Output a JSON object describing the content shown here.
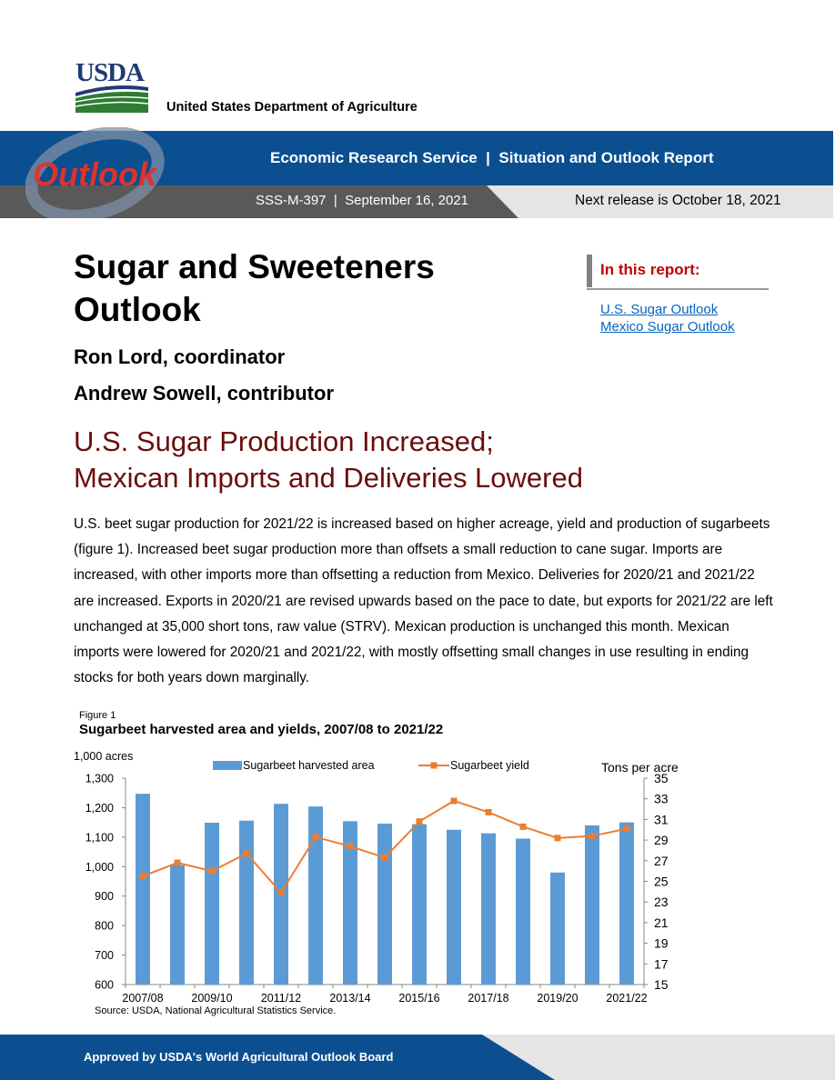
{
  "header": {
    "agency_short": "USDA",
    "agency_full": "United States Department of Agriculture",
    "series_logo": "Outlook",
    "banner_title": "Economic Research Service  |  Situation and Outlook Report",
    "report_id": "SSS-M-397  |  September 16, 2021",
    "next_release": "Next release is October 18, 2021"
  },
  "colors": {
    "banner_blue": "#0b4f91",
    "banner_dark": "#595959",
    "headline": "#6b0d0d",
    "accent_red": "#c00000",
    "bar": "#5b9bd5",
    "line": "#ed7d31"
  },
  "title": {
    "line1": "Sugar and Sweeteners",
    "line2": "Outlook"
  },
  "authors": [
    "Ron Lord, coordinator",
    "Andrew Sowell, contributor"
  ],
  "sidebar": {
    "title": "In this report:",
    "links": [
      "U.S. Sugar Outlook",
      "Mexico Sugar Outlook"
    ]
  },
  "headline": {
    "line1": "U.S. Sugar Production Increased;",
    "line2": "Mexican Imports and Deliveries Lowered"
  },
  "body": "U.S. beet sugar production for 2021/22 is increased based on higher acreage, yield and production of sugarbeets (figure 1). Increased beet sugar production more than offsets a small reduction to cane sugar. Imports are increased, with other imports more than offsetting a reduction from Mexico. Deliveries for 2020/21 and 2021/22 are increased. Exports in 2020/21 are revised upwards based on the pace to date, but exports for 2021/22 are left unchanged at 35,000 short tons, raw value (STRV). Mexican production is unchanged this month. Mexican imports were lowered for 2020/21 and 2021/22, with mostly offsetting small changes in use resulting in ending stocks for both years down marginally.",
  "figure": {
    "label": "Figure 1",
    "title": "Sugarbeet harvested area and yields, 2007/08 to 2021/22",
    "source": "Source: USDA, National Agricultural Statistics Service."
  },
  "chart_data": {
    "type": "bar",
    "categories": [
      "2007/08",
      "2008/09",
      "2009/10",
      "2010/11",
      "2011/12",
      "2012/13",
      "2013/14",
      "2014/15",
      "2015/16",
      "2016/17",
      "2017/18",
      "2018/19",
      "2019/20",
      "2020/21",
      "2021/22"
    ],
    "x_tick_labels": [
      "2007/08",
      "2009/10",
      "2011/12",
      "2013/14",
      "2015/16",
      "2017/18",
      "2019/20",
      "2021/22"
    ],
    "series": [
      {
        "name": "Sugarbeet harvested area",
        "type": "bar",
        "axis": "left",
        "values": [
          1247,
          1005,
          1149,
          1156,
          1213,
          1204,
          1154,
          1146,
          1144,
          1125,
          1113,
          1095,
          980,
          1140,
          1150
        ]
      },
      {
        "name": "Sugarbeet yield",
        "type": "line",
        "axis": "right",
        "values": [
          25.5,
          26.8,
          26.0,
          27.7,
          23.9,
          29.3,
          28.4,
          27.3,
          30.8,
          32.8,
          31.7,
          30.3,
          29.2,
          29.4,
          30.1
        ]
      }
    ],
    "left_axis": {
      "label": "1,000 acres",
      "min": 600,
      "max": 1300,
      "ticks": [
        "600",
        "700",
        "800",
        "900",
        "1,000",
        "1,100",
        "1,200",
        "1,300"
      ]
    },
    "right_axis": {
      "label": "Tons per acre",
      "min": 15,
      "max": 35,
      "ticks": [
        "15",
        "17",
        "19",
        "21",
        "23",
        "25",
        "27",
        "29",
        "31",
        "33",
        "35"
      ]
    },
    "legend": "top",
    "grid": false
  },
  "footer": {
    "approved": "Approved by USDA's World Agricultural Outlook Board"
  }
}
